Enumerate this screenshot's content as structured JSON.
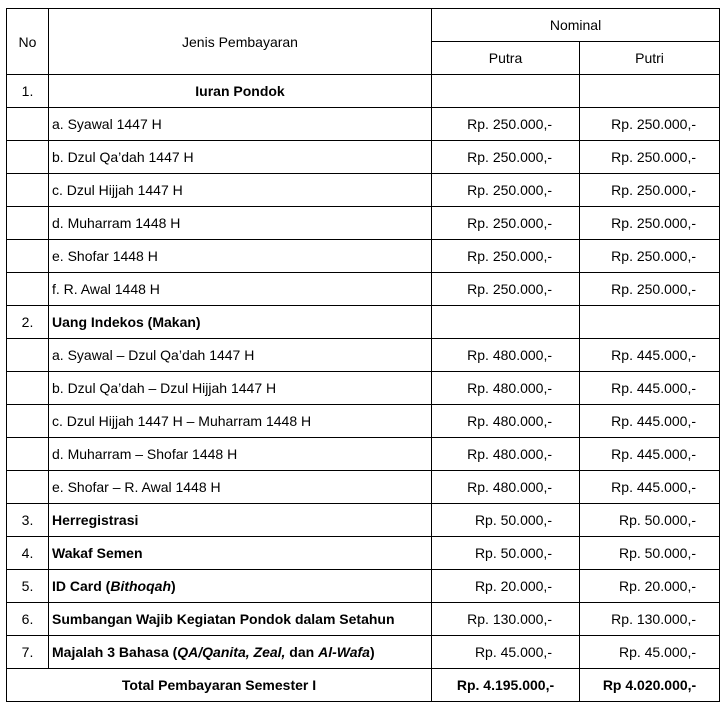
{
  "table": {
    "header": {
      "no": "No",
      "name": "Jenis Pembayaran",
      "nominal": "Nominal",
      "putra": "Putra",
      "putri": "Putri"
    },
    "rows": [
      {
        "no": "1.",
        "name": [
          "Iuran Pondok"
        ]
      },
      {
        "name": [
          "a. Syawal 1447 H"
        ],
        "putra": "Rp. 250.000,-",
        "putri": "Rp. 250.000,-"
      },
      {
        "name": [
          "b. Dzul Qa’dah 1447 H"
        ],
        "putra": "Rp. 250.000,-",
        "putri": "Rp. 250.000,-"
      },
      {
        "name": [
          "c. Dzul Hijjah 1447 H"
        ],
        "putra": "Rp. 250.000,-",
        "putri": "Rp. 250.000,-"
      },
      {
        "name": [
          "d. Muharram 1448 H"
        ],
        "putra": "Rp. 250.000,-",
        "putri": "Rp. 250.000,-"
      },
      {
        "name": [
          "e. Shofar 1448 H"
        ],
        "putra": "Rp. 250.000,-",
        "putri": "Rp. 250.000,-"
      },
      {
        "name": [
          "f. R. Awal 1448 H"
        ],
        "putra": "Rp. 250.000,-",
        "putri": "Rp. 250.000,-"
      },
      {
        "no": "2.",
        "name": [
          "Uang Indekos (Makan)"
        ]
      },
      {
        "name": [
          "a. Syawal – Dzul Qa’dah 1447 H"
        ],
        "putra": "Rp. 480.000,-",
        "putri": "Rp. 445.000,-"
      },
      {
        "name": [
          "b. Dzul Qa’dah – Dzul Hijjah 1447 H"
        ],
        "putra": "Rp. 480.000,-",
        "putri": "Rp. 445.000,-"
      },
      {
        "name": [
          "c. Dzul Hijjah 1447 H – Muharram 1448 H"
        ],
        "putra": "Rp. 480.000,-",
        "putri": "Rp. 445.000,-"
      },
      {
        "name": [
          "d. Muharram – Shofar 1448 H"
        ],
        "putra": "Rp. 480.000,-",
        "putri": "Rp. 445.000,-"
      },
      {
        "name": [
          "e. Shofar – R. Awal 1448 H"
        ],
        "putra": "Rp. 480.000,-",
        "putri": "Rp. 445.000,-"
      },
      {
        "no": "3.",
        "name": [
          "Herregistrasi"
        ],
        "putra": "Rp. 50.000,-",
        "putri": "Rp. 50.000,-"
      },
      {
        "no": "4.",
        "name": [
          "Wakaf Semen"
        ],
        "putra": "Rp. 50.000,-",
        "putri": "Rp. 50.000,-"
      },
      {
        "no": "5.",
        "name": [
          "ID Card (",
          "Bithoqah",
          ")"
        ],
        "putra": "Rp. 20.000,-",
        "putri": "Rp. 20.000,-"
      },
      {
        "no": "6.",
        "name": [
          "Sumbangan Wajib Kegiatan Pondok dalam Setahun"
        ],
        "putra": "Rp. 130.000,-",
        "putri": "Rp. 130.000,-"
      },
      {
        "no": "7.",
        "name": [
          "Majalah 3 Bahasa (",
          "QA/Qanita, Zeal,",
          " dan ",
          "Al-Wafa",
          ")"
        ],
        "putra": "Rp. 45.000,-",
        "putri": "Rp. 45.000,-"
      }
    ],
    "total": {
      "label": "Total Pembayaran Semester I",
      "putra": "Rp.  4.195.000,-",
      "putri": "Rp 4.020.000,-"
    }
  }
}
